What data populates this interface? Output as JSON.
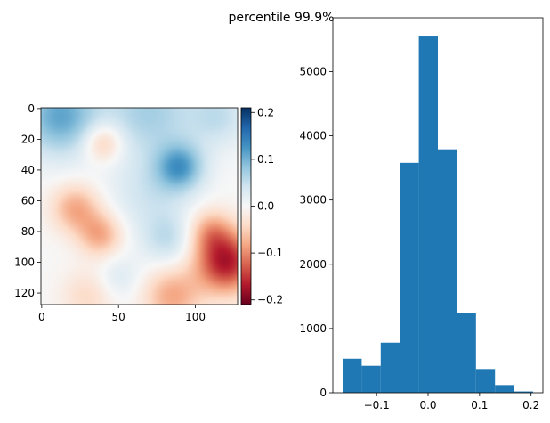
{
  "suptitle": "percentile 99.9%",
  "chart_data": [
    {
      "type": "heatmap",
      "title": "",
      "xlabel": "",
      "ylabel": "",
      "shape": [
        128,
        128
      ],
      "xlim": [
        0,
        128
      ],
      "ylim": [
        128,
        0
      ],
      "x_ticks": [
        0,
        50,
        100
      ],
      "x_tick_labels": [
        "0",
        "50",
        "100"
      ],
      "y_ticks": [
        0,
        20,
        40,
        60,
        80,
        100,
        120
      ],
      "y_tick_labels": [
        "0",
        "20",
        "40",
        "60",
        "80",
        "100",
        "120"
      ],
      "colormap": "RdBu",
      "colormap_stops": [
        "#67001f",
        "#b2182b",
        "#d6604d",
        "#f4a582",
        "#fddbc7",
        "#f7f7f7",
        "#d1e5f0",
        "#92c5de",
        "#4393c3",
        "#2166ac",
        "#053061"
      ],
      "vmin": -0.21,
      "vmax": 0.21,
      "colorbar_ticks": [
        0.2,
        0.1,
        0.0,
        -0.1,
        -0.2
      ],
      "colorbar_tick_labels": [
        "0.2",
        "0.1",
        "0.0",
        "−0.1",
        "−0.2"
      ],
      "blobs": [
        {
          "x": 12,
          "y": 5,
          "amp": 0.11,
          "sigma": 18
        },
        {
          "x": 70,
          "y": 2,
          "amp": 0.07,
          "sigma": 20
        },
        {
          "x": 115,
          "y": 5,
          "amp": 0.05,
          "sigma": 14
        },
        {
          "x": 90,
          "y": 38,
          "amp": 0.11,
          "sigma": 11
        },
        {
          "x": 70,
          "y": 55,
          "amp": 0.04,
          "sigma": 18
        },
        {
          "x": 82,
          "y": 85,
          "amp": 0.05,
          "sigma": 12
        },
        {
          "x": 50,
          "y": 110,
          "amp": 0.03,
          "sigma": 10
        },
        {
          "x": 40,
          "y": 22,
          "amp": -0.07,
          "sigma": 9
        },
        {
          "x": 22,
          "y": 65,
          "amp": -0.08,
          "sigma": 11
        },
        {
          "x": 38,
          "y": 82,
          "amp": -0.08,
          "sigma": 10
        },
        {
          "x": 120,
          "y": 100,
          "amp": -0.17,
          "sigma": 14
        },
        {
          "x": 110,
          "y": 80,
          "amp": -0.07,
          "sigma": 10
        },
        {
          "x": 85,
          "y": 122,
          "amp": -0.08,
          "sigma": 13
        },
        {
          "x": 30,
          "y": 122,
          "amp": -0.04,
          "sigma": 12
        }
      ]
    },
    {
      "type": "bar",
      "title": "",
      "xlabel": "",
      "ylabel": "",
      "bin_edges": [
        -0.166,
        -0.129,
        -0.092,
        -0.055,
        -0.018,
        0.019,
        0.056,
        0.093,
        0.13,
        0.167,
        0.204
      ],
      "values": [
        530,
        420,
        780,
        3580,
        5560,
        3790,
        1240,
        370,
        120,
        20
      ],
      "color": "#1f77b4",
      "xlim": [
        -0.185,
        0.223
      ],
      "ylim": [
        0,
        5838
      ],
      "x_ticks": [
        -0.1,
        0.0,
        0.1,
        0.2
      ],
      "x_tick_labels": [
        "−0.1",
        "0.0",
        "0.1",
        "0.2"
      ],
      "y_ticks": [
        0,
        1000,
        2000,
        3000,
        4000,
        5000
      ],
      "y_tick_labels": [
        "0",
        "1000",
        "2000",
        "3000",
        "4000",
        "5000"
      ]
    }
  ]
}
